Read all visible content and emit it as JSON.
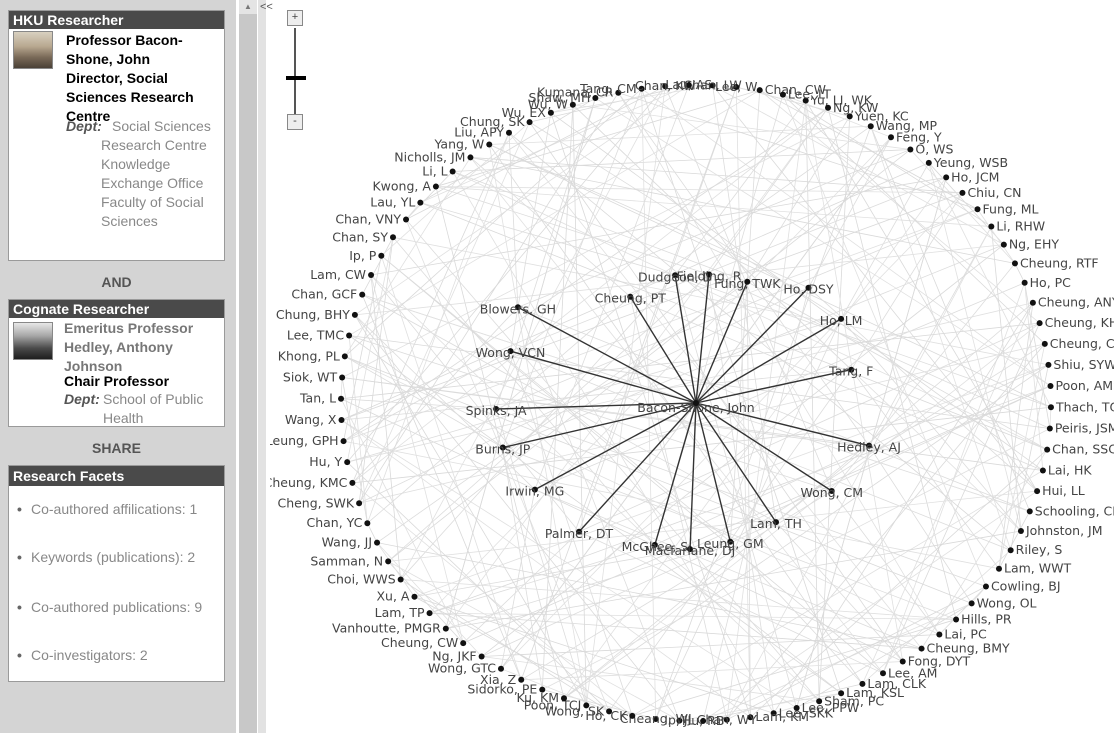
{
  "researcher": {
    "header": "HKU Researcher",
    "name": "Professor Bacon-Shone, John",
    "title": "Director, Social Sciences Research Centre",
    "dept_label": "Dept:",
    "depts": [
      "Social Sciences Research Centre",
      "Knowledge Exchange Office",
      "Faculty of Social Sciences"
    ]
  },
  "and_label": "AND",
  "cognate": {
    "header": "Cognate Researcher",
    "name": "Emeritus Professor Hedley, Anthony Johnson",
    "title": "Chair Professor",
    "dept_label": "Dept:",
    "dept": "School of Public Health"
  },
  "share_label": "SHARE",
  "facets": {
    "header": "Research Facets",
    "items": [
      "Co-authored affilications: 1",
      "Keywords (publications): 2",
      "Co-authored publications: 9",
      "Co-investigators: 2"
    ]
  },
  "collapse_label": "<<",
  "zoom": {
    "plus": "+",
    "minus": "-",
    "level": 0.7
  },
  "graph": {
    "center": "Bacon-Shone, John",
    "inner": [
      "Dudgeon, D",
      "Fielding, R",
      "Fung, TWK",
      "Cheung, PT",
      "Ho, DSY",
      "Blowers, GH",
      "Ho, LM",
      "Wong, VCN",
      "Tang, F",
      "Spinks, JA",
      "Hedley, AJ",
      "Burns, JP",
      "Wong, CM",
      "Irwin, MG",
      "Lam, TH",
      "Palmer, DT",
      "Leung, GM",
      "McGhee, S",
      "Macfarlane, DJ"
    ],
    "outer": [
      "Yu, LI, WK",
      "Ng, KW",
      "Yuen, KC",
      "Wang, MP",
      "Feng, Y",
      "O, WS",
      "Yeung, WSB",
      "Ho, JCM",
      "Chiu, CN",
      "Fung, ML",
      "Li, RHW",
      "Ng, EHY",
      "Cheung, RTF",
      "Ho, PC",
      "Cheung, ANY",
      "Cheung, KH",
      "Cheung, CY",
      "Shiu, SYW",
      "Poon, AMS",
      "Thach, TQ",
      "Peiris, JSM",
      "Chan, SSC",
      "Lai, HK",
      "Hui, LL",
      "Schooling, CM",
      "Johnston, JM",
      "Riley, S",
      "Lam, WWT",
      "Cowling, BJ",
      "Wong, OL",
      "Hills, PR",
      "Lai, PC",
      "Cheung, BMY",
      "Fong, DYT",
      "Lee, AM",
      "Lam, CLK",
      "Lam, KSL",
      "Sham, PC",
      "Lee, PPW",
      "Lee, SKK",
      "Lam, KM",
      "Chan, WY",
      "Hu, RB",
      "Ip, JL",
      "Cheang, WJ",
      "Ho, CK",
      "Wong, SK",
      "Poon, TCJ",
      "Ku, KM",
      "Sidorko, PE",
      "Xia, Z",
      "Wong, GTC",
      "Ng, JKF",
      "Cheung, CW",
      "Vanhoutte, PMGR",
      "Lam, TP",
      "Xu, A",
      "Choi, WWS",
      "Samman, N",
      "Wang, JJ",
      "Chan, YC",
      "Cheng, SWK",
      "Cheung, KMC",
      "Hu, Y",
      "Leung, GPH",
      "Wang, X",
      "Tan, L",
      "Siok, WT",
      "Khong, PL",
      "Lee, TMC",
      "Chung, BHY",
      "Chan, GCF",
      "Lam, CW",
      "Ip, P",
      "Chan, SY",
      "Chan, VNY",
      "Lau, YL",
      "Kwong, A",
      "Li, L",
      "Nicholls, JM",
      "Yang, W",
      "Liu, APY",
      "Chung, SK",
      "Wu, EX",
      "Wu, W",
      "Shaw, MH",
      "Kumana, CR",
      "Tang, CM",
      "Chan, KW",
      "Lau, AS",
      "Chan, LW",
      "Lee, W",
      "Chan, CW",
      "Lee, LT"
    ]
  }
}
